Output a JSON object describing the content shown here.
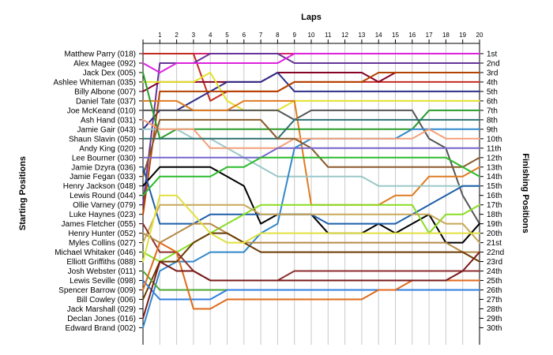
{
  "chart_data": {
    "type": "line",
    "title": "Laps",
    "ylabel_left": "Starting Positions",
    "ylabel_right": "Finishing Positions",
    "x": [
      0,
      1,
      2,
      3,
      4,
      5,
      6,
      7,
      8,
      9,
      10,
      11,
      12,
      13,
      14,
      15,
      16,
      17,
      18,
      19,
      20
    ],
    "xlim": [
      0,
      20
    ],
    "ylim": [
      1,
      30
    ],
    "y_inverted": true,
    "grid": "vertical",
    "starting_labels": [
      "Matthew Parry (018)",
      "Alex Magee (092)",
      "Jack Dex (005)",
      "Ashlee Whiteman (035)",
      "Billy Albone (007)",
      "Daniel Tate (037)",
      "Joe McKeand (010)",
      "Ash Hand (031)",
      "Jamie Gair (043)",
      "Shaun Slavin (050)",
      "Andy King (020)",
      "Lee Bourner (030)",
      "Jamie Dzyra (036)",
      "Jamie Fegan (033)",
      "Henry Jackson (048)",
      "Lewis Round (044)",
      "Ollie Varney (079)",
      "Luke Haynes (023)",
      "James Fletcher (055)",
      "Henry Hunter (052)",
      "Myles Collins (027)",
      "Michael Whitaker (046)",
      "Elliott Griffiths (088)",
      "Josh Webster (011)",
      "Lewis Seville (098)",
      "Spencer Barrow (009)",
      "Bill Cowley (006)",
      "Jack Marshall (029)",
      "Declan Jones (016)",
      "Edward Brand (002)"
    ],
    "finishing_labels": [
      "1st",
      "2nd",
      "3rd",
      "4th",
      "5th",
      "6th",
      "7th",
      "8th",
      "9th",
      "10th",
      "11th",
      "12th",
      "13th",
      "14th",
      "15th",
      "16th",
      "17th",
      "18th",
      "19th",
      "20th",
      "21st",
      "22nd",
      "23rd",
      "24th",
      "25th",
      "26th",
      "27th",
      "28th",
      "29th",
      "30th"
    ],
    "series": [
      {
        "color": "#d4266e",
        "values": [
          1,
          1,
          1,
          1,
          1,
          1,
          1,
          1,
          1,
          1,
          1,
          1,
          1,
          1,
          1,
          1,
          1,
          1,
          1,
          1,
          1
        ]
      },
      {
        "color": "#c22a1f",
        "values": [
          1,
          1,
          1,
          1,
          6,
          5,
          5,
          5,
          5,
          4,
          4,
          4,
          4,
          4,
          4,
          4,
          4,
          4,
          4,
          4,
          4
        ]
      },
      {
        "color": "#663399",
        "values": [
          17,
          2,
          2,
          2,
          1,
          1,
          1,
          1,
          1,
          2,
          2,
          2,
          2,
          2,
          2,
          2,
          2,
          2,
          2,
          2,
          2
        ]
      },
      {
        "color": "#dd22dd",
        "values": [
          2,
          3,
          2,
          2,
          2,
          2,
          2,
          2,
          2,
          1,
          1,
          1,
          1,
          1,
          1,
          1,
          1,
          1,
          1,
          1,
          1
        ]
      },
      {
        "color": "#880022",
        "values": [
          5,
          4,
          4,
          4,
          4,
          4,
          4,
          4,
          3,
          3,
          3,
          3,
          3,
          3,
          4,
          3,
          3,
          3,
          3,
          3,
          3
        ]
      },
      {
        "color": "#2e2e8a",
        "values": [
          9,
          7,
          7,
          6,
          5,
          4,
          4,
          4,
          3,
          5,
          5,
          5,
          5,
          5,
          5,
          5,
          5,
          5,
          5,
          5,
          5
        ]
      },
      {
        "color": "#e3e32c",
        "values": [
          4,
          4,
          4,
          4,
          3,
          6,
          7,
          7,
          7,
          6,
          6,
          6,
          6,
          6,
          6,
          6,
          6,
          6,
          6,
          6,
          6
        ]
      },
      {
        "color": "#b44200",
        "values": [
          18,
          5,
          5,
          5,
          5,
          5,
          5,
          5,
          5,
          4,
          4,
          4,
          4,
          4,
          3,
          3,
          3,
          3,
          3,
          3,
          3
        ]
      },
      {
        "color": "#555555",
        "values": [
          7,
          7,
          7,
          7,
          7,
          7,
          7,
          7,
          7,
          8,
          7,
          7,
          7,
          7,
          7,
          7,
          7,
          10,
          11,
          16,
          19
        ]
      },
      {
        "color": "#e07b20",
        "values": [
          6,
          6,
          6,
          7,
          7,
          7,
          6,
          6,
          6,
          6,
          17,
          17,
          17,
          17,
          17,
          16,
          16,
          14,
          14,
          14,
          13
        ]
      },
      {
        "color": "#2b9b2b",
        "values": [
          3,
          10,
          9,
          9,
          9,
          9,
          9,
          9,
          9,
          9,
          9,
          9,
          9,
          9,
          9,
          9,
          9,
          7,
          7,
          7,
          7
        ]
      },
      {
        "color": "#9bc8c8",
        "values": [
          9,
          9,
          9,
          10,
          10,
          11,
          12,
          13,
          14,
          14,
          14,
          14,
          14,
          14,
          15,
          15,
          15,
          15,
          15,
          15,
          15
        ]
      },
      {
        "color": "#3288cc",
        "values": [
          30,
          24,
          23,
          23,
          22,
          22,
          22,
          20,
          19,
          11,
          10,
          10,
          10,
          10,
          10,
          10,
          9,
          9,
          9,
          9,
          9
        ]
      },
      {
        "color": "#f4a07a",
        "values": [
          8,
          9,
          9,
          9,
          11,
          11,
          11,
          11,
          11,
          10,
          10,
          10,
          10,
          10,
          10,
          10,
          10,
          9,
          10,
          10,
          10
        ]
      },
      {
        "color": "#2f7070",
        "values": [
          10,
          10,
          10,
          10,
          10,
          10,
          10,
          10,
          10,
          8,
          8,
          8,
          8,
          8,
          8,
          8,
          8,
          8,
          8,
          8,
          8
        ]
      },
      {
        "color": "#8a5a2a",
        "values": [
          14,
          8,
          8,
          8,
          8,
          8,
          8,
          8,
          10,
          10,
          11,
          13,
          13,
          13,
          13,
          13,
          13,
          13,
          13,
          13,
          12
        ]
      },
      {
        "color": "#7766cc",
        "values": [
          12,
          12,
          12,
          12,
          12,
          12,
          12,
          12,
          11,
          11,
          11,
          11,
          11,
          11,
          11,
          11,
          11,
          11,
          11,
          11,
          11
        ]
      },
      {
        "color": "#000000",
        "values": [
          15,
          13,
          13,
          13,
          13,
          14,
          15,
          19,
          18,
          18,
          18,
          20,
          20,
          20,
          19,
          20,
          19,
          18,
          21,
          21,
          19
        ]
      },
      {
        "color": "#1e5fa8",
        "values": [
          13,
          19,
          19,
          19,
          18,
          18,
          18,
          18,
          18,
          18,
          18,
          19,
          19,
          19,
          19,
          19,
          18,
          17,
          16,
          15,
          15
        ]
      },
      {
        "color": "#2bbb2b",
        "values": [
          16,
          14,
          14,
          14,
          14,
          13,
          13,
          12,
          12,
          12,
          12,
          12,
          12,
          12,
          12,
          12,
          12,
          12,
          12,
          13,
          14
        ]
      },
      {
        "color": "#88dd22",
        "values": [
          22,
          23,
          22,
          21,
          20,
          19,
          18,
          17,
          17,
          17,
          17,
          17,
          17,
          17,
          17,
          17,
          17,
          20,
          18,
          18,
          17
        ]
      },
      {
        "color": "#c8a858",
        "values": [
          21,
          17,
          17,
          17,
          17,
          17,
          17,
          18,
          18,
          18,
          18,
          18,
          18,
          18,
          18,
          18,
          18,
          18,
          19,
          19,
          21
        ]
      },
      {
        "color": "#8e2e2e",
        "values": [
          19,
          22,
          22,
          24,
          25,
          25,
          25,
          25,
          25,
          24,
          24,
          24,
          24,
          24,
          24,
          24,
          24,
          24,
          24,
          24,
          24
        ]
      },
      {
        "color": "#b58a48",
        "values": [
          20,
          21,
          20,
          19,
          19,
          20,
          21,
          21,
          21,
          21,
          21,
          21,
          21,
          21,
          21,
          21,
          21,
          21,
          21,
          22,
          22
        ]
      },
      {
        "color": "#6a3a00",
        "values": [
          27,
          23,
          23,
          21,
          20,
          20,
          21,
          22,
          22,
          22,
          22,
          22,
          22,
          22,
          22,
          22,
          22,
          22,
          22,
          22,
          23
        ]
      },
      {
        "color": "#e0e040",
        "values": [
          23,
          16,
          16,
          18,
          20,
          21,
          21,
          20,
          20,
          20,
          20,
          20,
          20,
          20,
          20,
          20,
          20,
          20,
          20,
          20,
          20
        ]
      },
      {
        "color": "#4aa832",
        "values": [
          24,
          26,
          26,
          26,
          26,
          26,
          26,
          26,
          26,
          26,
          26,
          26,
          26,
          26,
          26,
          26,
          26,
          26,
          26,
          26,
          26
        ]
      },
      {
        "color": "#2f7fe0",
        "values": [
          25,
          27,
          27,
          27,
          27,
          26,
          26,
          26,
          26,
          26,
          26,
          26,
          26,
          26,
          26,
          26,
          26,
          26,
          26,
          26,
          26
        ]
      },
      {
        "color": "#e06a1a",
        "values": [
          26,
          21,
          22,
          28,
          28,
          27,
          27,
          27,
          27,
          27,
          27,
          27,
          27,
          27,
          26,
          26,
          25,
          25,
          25,
          25,
          25
        ]
      },
      {
        "color": "#7a1a1a",
        "values": [
          29,
          23,
          24,
          24,
          25,
          25,
          25,
          25,
          25,
          25,
          25,
          25,
          25,
          25,
          25,
          25,
          25,
          25,
          25,
          24,
          22
        ]
      }
    ]
  }
}
